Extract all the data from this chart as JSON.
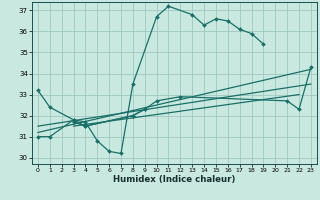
{
  "xlabel": "Humidex (Indice chaleur)",
  "xlim": [
    -0.5,
    23.5
  ],
  "ylim": [
    29.7,
    37.4
  ],
  "xticks": [
    0,
    1,
    2,
    3,
    4,
    5,
    6,
    7,
    8,
    9,
    10,
    11,
    12,
    13,
    14,
    15,
    16,
    17,
    18,
    19,
    20,
    21,
    22,
    23
  ],
  "yticks": [
    30,
    31,
    32,
    33,
    34,
    35,
    36,
    37
  ],
  "bg_color": "#c8e8e0",
  "line_color": "#1a7068",
  "grid_color": "#a0c8c0",
  "lines": [
    {
      "x": [
        0,
        1,
        3,
        4,
        5,
        6,
        7,
        8,
        10,
        11,
        13,
        14,
        15,
        16,
        17,
        18,
        19
      ],
      "y": [
        33.2,
        32.4,
        31.8,
        31.7,
        30.8,
        30.3,
        30.2,
        33.5,
        36.7,
        37.2,
        36.8,
        36.3,
        36.6,
        36.5,
        36.1,
        35.9,
        35.4
      ],
      "marker": true
    },
    {
      "x": [
        3,
        4,
        8,
        9
      ],
      "y": [
        31.7,
        31.5,
        32.0,
        32.3
      ],
      "marker": true
    },
    {
      "x": [
        0,
        1,
        3,
        4,
        8,
        9,
        10,
        12,
        21,
        22,
        23
      ],
      "y": [
        31.0,
        31.0,
        31.8,
        31.5,
        32.0,
        32.3,
        32.7,
        32.9,
        32.7,
        32.3,
        34.3
      ],
      "marker": true
    },
    {
      "x": [
        0,
        23
      ],
      "y": [
        31.2,
        34.2
      ],
      "marker": false
    },
    {
      "x": [
        0,
        23
      ],
      "y": [
        31.5,
        33.5
      ],
      "marker": false
    },
    {
      "x": [
        3,
        22
      ],
      "y": [
        31.5,
        33.0
      ],
      "marker": false
    }
  ]
}
